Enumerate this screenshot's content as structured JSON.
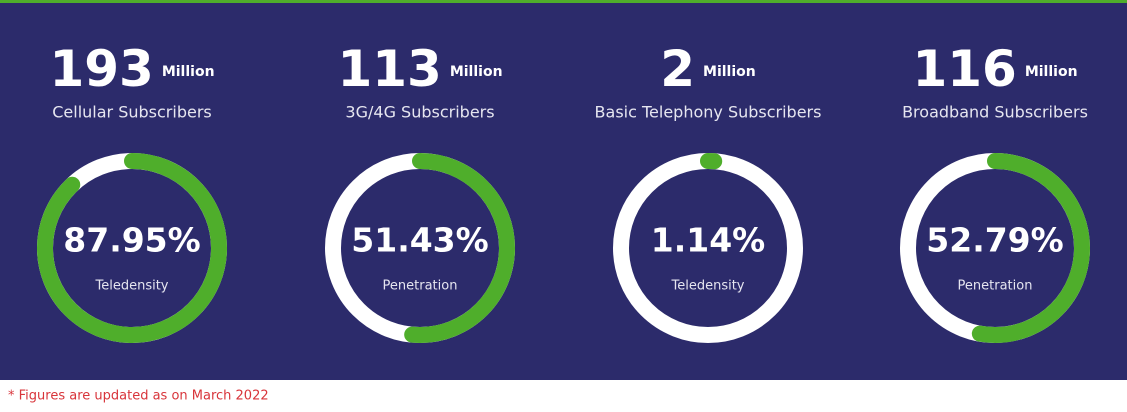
{
  "chart_data": [
    {
      "type": "donut",
      "headline": 193,
      "unit": "Million",
      "title": "Cellular Subscribers",
      "values": [
        87.95
      ],
      "value_labels": [
        "87.95%"
      ],
      "caption": "Teledensity",
      "color": "#4fae2b"
    },
    {
      "type": "donut",
      "headline": 113,
      "unit": "Million",
      "title": "3G/4G Subscribers",
      "values": [
        51.43
      ],
      "value_labels": [
        "51.43%"
      ],
      "caption": "Penetration",
      "color": "#4fae2b"
    },
    {
      "type": "donut",
      "headline": 2,
      "unit": "Million",
      "title": "Basic Telephony Subscribers",
      "values": [
        1.14
      ],
      "value_labels": [
        "1.14%"
      ],
      "caption": "Teledensity",
      "color": "#4fae2b"
    },
    {
      "type": "donut",
      "headline": 116,
      "unit": "Million",
      "title": "Broadband Subscribers",
      "values": [
        52.79
      ],
      "value_labels": [
        "52.79%"
      ],
      "caption": "Penetration",
      "color": "#4fae2b"
    }
  ],
  "footnote": "* Figures are updated as on March 2022"
}
